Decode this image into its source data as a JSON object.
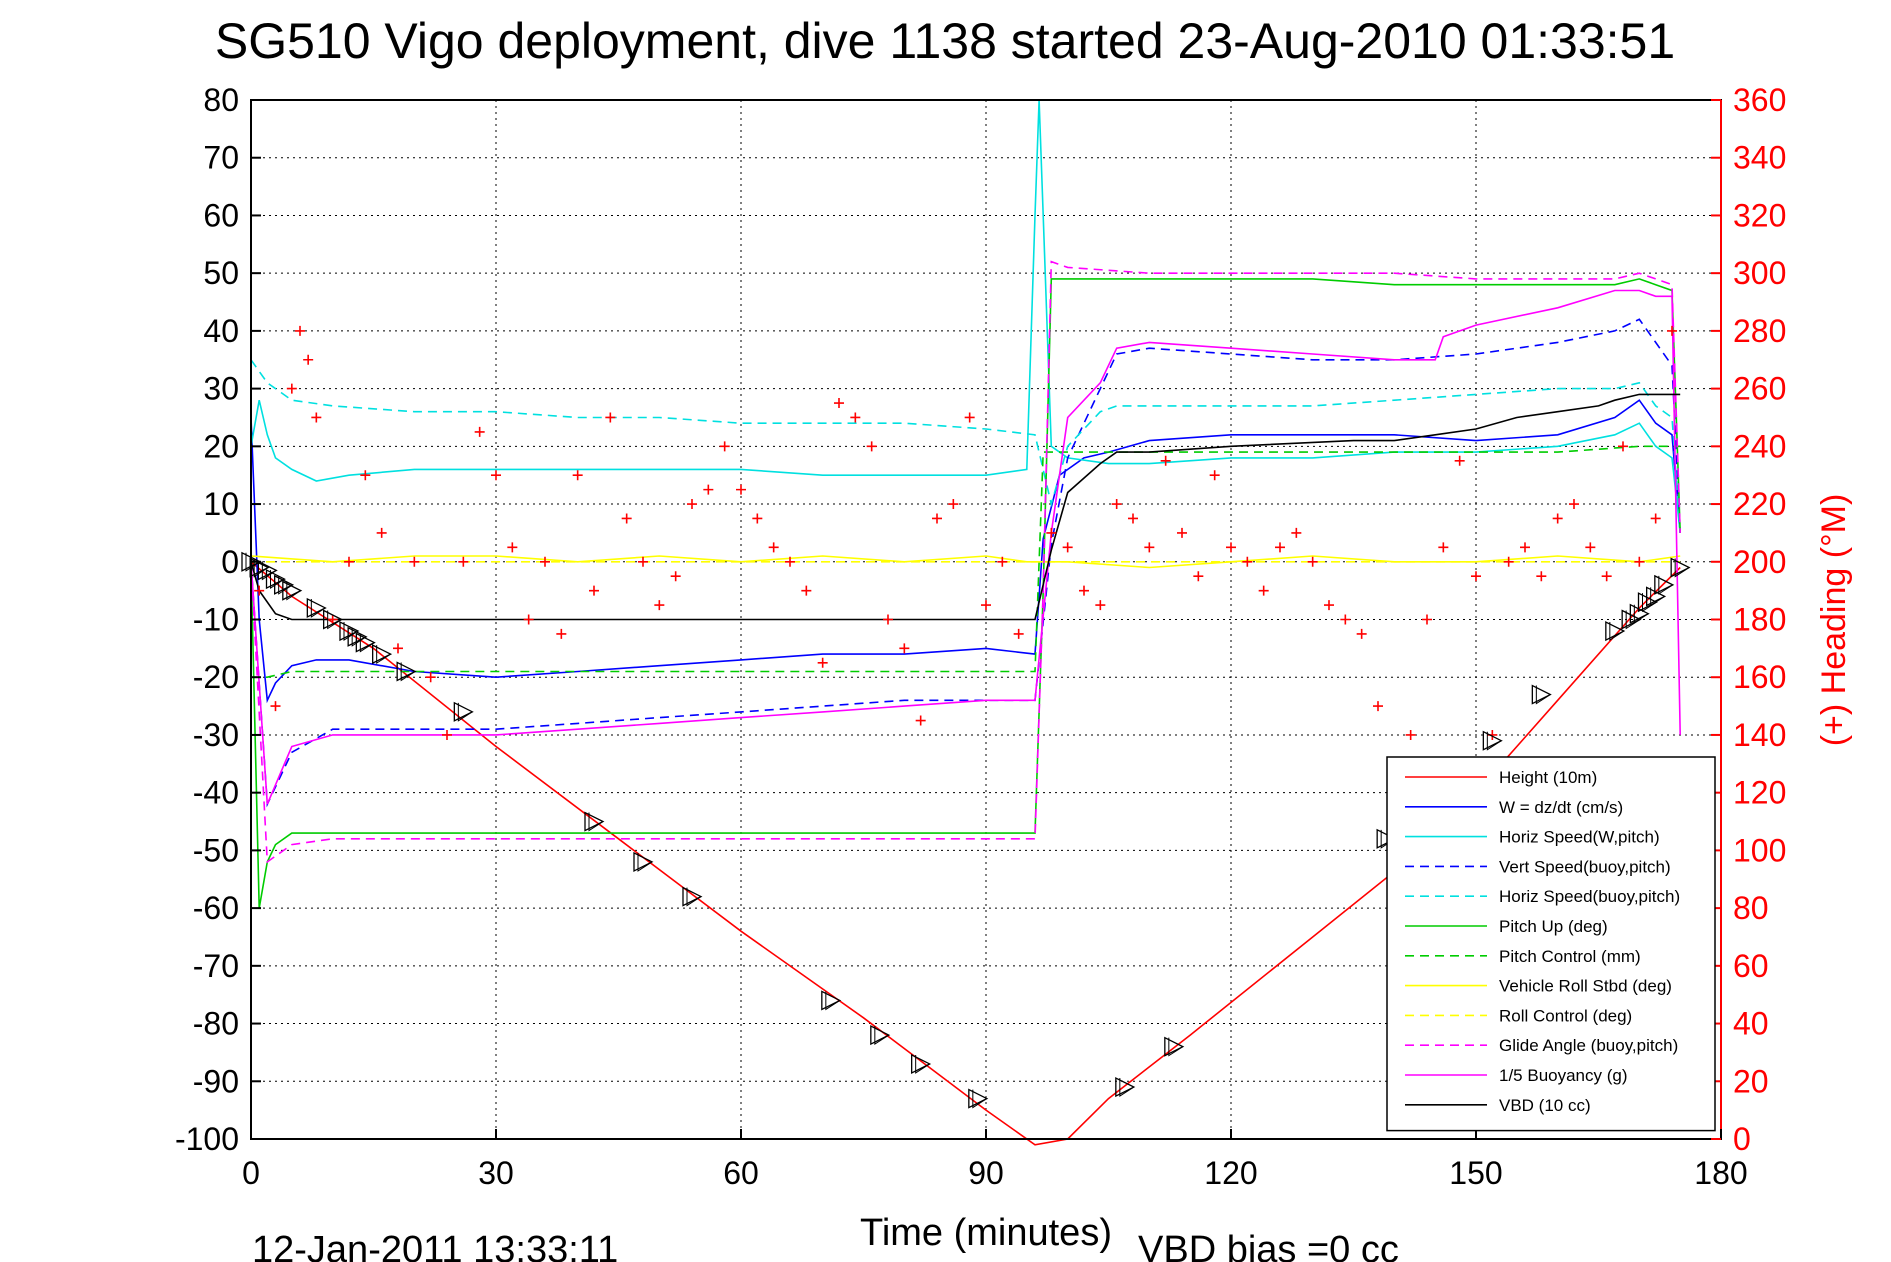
{
  "chart_data": {
    "type": "line",
    "title": "SG510 Vigo deployment, dive 1138 started 23-Aug-2010 01:33:51",
    "xlabel": "Time (minutes)",
    "ylabel_right": "(+) Heading (°M)",
    "footer_date": "12-Jan-2011 13:33:11",
    "footer_vbd": "VBD bias =0 cc",
    "xlim": [
      0,
      180
    ],
    "ylim": [
      -100,
      80
    ],
    "ylim_right": [
      0,
      360
    ],
    "x_ticks": [
      0,
      30,
      60,
      90,
      120,
      150,
      180
    ],
    "y_ticks": [
      80,
      70,
      60,
      50,
      40,
      30,
      20,
      10,
      0,
      -10,
      -20,
      -30,
      -40,
      -50,
      -60,
      -70,
      -80,
      -90,
      -100
    ],
    "y_ticks_right": [
      360,
      340,
      320,
      300,
      280,
      260,
      240,
      220,
      200,
      180,
      160,
      140,
      120,
      100,
      80,
      60,
      40,
      20,
      0
    ],
    "grid": true,
    "legend_position": "bottom-right",
    "series": [
      {
        "name": "Height (10m)",
        "color": "#ff0000",
        "style": "solid",
        "x": [
          0,
          5,
          15,
          30,
          45,
          60,
          75,
          90,
          96,
          100,
          105,
          115,
          130,
          145,
          160,
          170,
          175
        ],
        "y": [
          0,
          -6,
          -15,
          -32,
          -48,
          -64,
          -79,
          -95,
          -101,
          -100,
          -93,
          -82,
          -65,
          -48,
          -24,
          -8,
          -1
        ]
      },
      {
        "name": "W = dz/dt (cm/s)",
        "color": "#0000ff",
        "style": "solid",
        "x": [
          0,
          1,
          2,
          3,
          5,
          8,
          12,
          20,
          30,
          40,
          50,
          60,
          70,
          80,
          90,
          96,
          97,
          99,
          102,
          105,
          110,
          120,
          130,
          140,
          150,
          160,
          167,
          170,
          172,
          174,
          175
        ],
        "y": [
          25,
          -10,
          -24,
          -21,
          -18,
          -17,
          -17,
          -19,
          -20,
          -19,
          -18,
          -17,
          -16,
          -16,
          -15,
          -16,
          4,
          15,
          18,
          19,
          21,
          22,
          22,
          22,
          21,
          22,
          25,
          28,
          24,
          22,
          5
        ]
      },
      {
        "name": "Horiz Speed(W,pitch)",
        "color": "#00e0e0",
        "style": "solid",
        "x": [
          0,
          1,
          2,
          3,
          5,
          8,
          12,
          20,
          30,
          40,
          50,
          60,
          70,
          80,
          90,
          95,
          96,
          96.5,
          97,
          98,
          100,
          105,
          110,
          120,
          130,
          140,
          150,
          160,
          167,
          170,
          172,
          174,
          175
        ],
        "y": [
          20,
          28,
          22,
          18,
          16,
          14,
          15,
          16,
          16,
          16,
          16,
          16,
          15,
          15,
          15,
          16,
          60,
          80,
          60,
          20,
          18,
          17,
          17,
          18,
          18,
          19,
          19,
          20,
          22,
          24,
          20,
          18,
          5
        ]
      },
      {
        "name": "Vert Speed(buoy,pitch)",
        "color": "#0000ff",
        "style": "dashed",
        "x": [
          0,
          2,
          5,
          10,
          20,
          30,
          40,
          50,
          60,
          70,
          80,
          90,
          96,
          98,
          100,
          104,
          106,
          110,
          120,
          130,
          140,
          150,
          160,
          167,
          170,
          172,
          174,
          175
        ],
        "y": [
          0,
          -42,
          -33,
          -29,
          -29,
          -29,
          -28,
          -27,
          -26,
          -25,
          -24,
          -24,
          -24,
          3,
          18,
          30,
          36,
          37,
          36,
          35,
          35,
          36,
          38,
          40,
          42,
          38,
          34,
          5
        ]
      },
      {
        "name": "Horiz Speed(buoy,pitch)",
        "color": "#00e0e0",
        "style": "dashed",
        "x": [
          0,
          2,
          5,
          10,
          20,
          30,
          40,
          50,
          60,
          70,
          80,
          90,
          96,
          98,
          100,
          104,
          106,
          110,
          120,
          130,
          140,
          150,
          160,
          167,
          170,
          172,
          174,
          175
        ],
        "y": [
          35,
          31,
          28,
          27,
          26,
          26,
          25,
          25,
          24,
          24,
          24,
          23,
          22,
          10,
          20,
          26,
          27,
          27,
          27,
          27,
          28,
          29,
          30,
          30,
          31,
          27,
          25,
          5
        ]
      },
      {
        "name": "Pitch Up (deg)",
        "color": "#00cc00",
        "style": "solid",
        "x": [
          0,
          1,
          2,
          3,
          5,
          8,
          12,
          20,
          30,
          40,
          50,
          60,
          70,
          80,
          90,
          96,
          97,
          98,
          100,
          110,
          120,
          130,
          140,
          150,
          160,
          167,
          170,
          172,
          174,
          175
        ],
        "y": [
          0,
          -60,
          -52,
          -49,
          -47,
          -47,
          -47,
          -47,
          -47,
          -47,
          -47,
          -47,
          -47,
          -47,
          -47,
          -47,
          -5,
          49,
          49,
          49,
          49,
          49,
          48,
          48,
          48,
          48,
          49,
          48,
          47,
          5
        ]
      },
      {
        "name": "Pitch Control (mm)",
        "color": "#00cc00",
        "style": "dashed",
        "x": [
          0,
          2,
          5,
          10,
          20,
          30,
          40,
          50,
          60,
          70,
          80,
          90,
          96,
          97,
          100,
          110,
          120,
          130,
          140,
          150,
          160,
          170,
          175
        ],
        "y": [
          -20,
          -20,
          -19,
          -19,
          -19,
          -19,
          -19,
          -19,
          -19,
          -19,
          -19,
          -19,
          -19,
          19,
          19,
          19,
          19,
          19,
          19,
          19,
          19,
          20,
          20
        ]
      },
      {
        "name": "Vehicle Roll Stbd (deg)",
        "color": "#ffff00",
        "style": "solid",
        "x": [
          0,
          10,
          20,
          30,
          40,
          50,
          60,
          70,
          80,
          90,
          95,
          100,
          110,
          120,
          130,
          140,
          150,
          160,
          170,
          175
        ],
        "y": [
          1,
          0,
          1,
          1,
          0,
          1,
          0,
          1,
          0,
          1,
          0,
          0,
          -1,
          0,
          1,
          0,
          0,
          1,
          0,
          1
        ]
      },
      {
        "name": "Roll Control (deg)",
        "color": "#ffff00",
        "style": "dashed",
        "x": [
          0,
          10,
          20,
          30,
          40,
          50,
          60,
          70,
          80,
          90,
          95,
          100,
          110,
          120,
          130,
          140,
          150,
          160,
          170,
          175
        ],
        "y": [
          0,
          0,
          0,
          0,
          0,
          0,
          0,
          0,
          0,
          0,
          0,
          0,
          0,
          0,
          0,
          0,
          0,
          0,
          0,
          0
        ]
      },
      {
        "name": "Glide Angle (buoy,pitch)",
        "color": "#ff00ff",
        "style": "dashed",
        "x": [
          0,
          2,
          5,
          10,
          20,
          30,
          40,
          50,
          60,
          70,
          80,
          90,
          96,
          97,
          98,
          100,
          110,
          120,
          130,
          140,
          150,
          160,
          167,
          170,
          172,
          174,
          175
        ],
        "y": [
          0,
          -52,
          -49,
          -48,
          -48,
          -48,
          -48,
          -48,
          -48,
          -48,
          -48,
          -48,
          -48,
          -5,
          52,
          51,
          50,
          50,
          50,
          50,
          49,
          49,
          49,
          50,
          49,
          48,
          5
        ]
      },
      {
        "name": "1/5 Buoyancy (g)",
        "color": "#ff00ff",
        "style": "solid",
        "x": [
          0,
          2,
          5,
          10,
          20,
          30,
          40,
          50,
          60,
          70,
          80,
          90,
          96,
          98,
          100,
          104,
          106,
          110,
          120,
          130,
          140,
          145,
          146,
          150,
          160,
          167,
          170,
          172,
          174,
          175
        ],
        "y": [
          0,
          -42,
          -32,
          -30,
          -30,
          -30,
          -29,
          -28,
          -27,
          -26,
          -25,
          -24,
          -24,
          5,
          25,
          31,
          37,
          38,
          37,
          36,
          35,
          35,
          39,
          41,
          44,
          47,
          47,
          46,
          46,
          -30
        ]
      },
      {
        "name": "VBD (10 cc)",
        "color": "#000000",
        "style": "solid",
        "x": [
          0,
          1,
          3,
          5,
          10,
          20,
          40,
          60,
          80,
          96,
          98,
          100,
          104,
          106,
          110,
          120,
          135,
          140,
          145,
          150,
          155,
          160,
          165,
          167,
          170,
          175
        ],
        "y": [
          0,
          -5,
          -9,
          -10,
          -10,
          -10,
          -10,
          -10,
          -10,
          -10,
          2,
          12,
          17,
          19,
          19,
          20,
          21,
          21,
          22,
          23,
          25,
          26,
          27,
          28,
          29,
          29
        ]
      }
    ],
    "heading_points": {
      "name": "(+) Heading (°M)",
      "color": "#ff0000",
      "marker": "+",
      "x": [
        1,
        3,
        5,
        6,
        7,
        8,
        10,
        12,
        14,
        16,
        18,
        20,
        22,
        24,
        26,
        28,
        30,
        32,
        34,
        36,
        38,
        40,
        42,
        44,
        46,
        48,
        50,
        52,
        54,
        56,
        58,
        60,
        62,
        64,
        66,
        68,
        70,
        72,
        74,
        76,
        78,
        80,
        82,
        84,
        86,
        88,
        90,
        92,
        94,
        98,
        100,
        102,
        104,
        106,
        108,
        110,
        112,
        114,
        116,
        118,
        120,
        122,
        124,
        126,
        128,
        130,
        132,
        134,
        136,
        138,
        140,
        142,
        144,
        146,
        148,
        150,
        152,
        154,
        156,
        158,
        160,
        162,
        164,
        166,
        168,
        170,
        172,
        174
      ],
      "y": [
        190,
        150,
        260,
        280,
        270,
        250,
        180,
        200,
        230,
        210,
        170,
        200,
        160,
        140,
        200,
        245,
        230,
        205,
        180,
        200,
        175,
        230,
        190,
        250,
        215,
        200,
        185,
        195,
        220,
        225,
        240,
        225,
        215,
        205,
        200,
        190,
        165,
        255,
        250,
        240,
        180,
        170,
        145,
        215,
        220,
        250,
        185,
        200,
        175,
        210,
        205,
        190,
        185,
        220,
        215,
        205,
        235,
        210,
        195,
        230,
        205,
        200,
        190,
        205,
        210,
        200,
        185,
        180,
        175,
        150,
        130,
        140,
        180,
        205,
        235,
        195,
        140,
        200,
        205,
        195,
        215,
        220,
        205,
        195,
        240,
        200,
        215,
        280
      ]
    },
    "dive_markers": {
      "name": "triangle markers",
      "color": "#000000",
      "x": [
        0,
        1,
        2,
        3,
        4,
        5,
        8,
        10,
        12,
        13,
        14,
        16,
        19,
        26,
        42,
        48,
        54,
        71,
        77,
        82,
        89,
        107,
        113,
        139,
        152,
        158,
        167,
        169,
        170,
        171,
        172,
        173,
        175
      ],
      "y": [
        0,
        -1,
        -1.5,
        -3,
        -4,
        -5,
        -8,
        -10,
        -12,
        -13,
        -14,
        -16,
        -19,
        -26,
        -45,
        -52,
        -58,
        -76,
        -82,
        -87,
        -93,
        -91,
        -84,
        -48,
        -31,
        -23,
        -12,
        -10,
        -9,
        -7,
        -6,
        -4,
        -1
      ]
    }
  }
}
